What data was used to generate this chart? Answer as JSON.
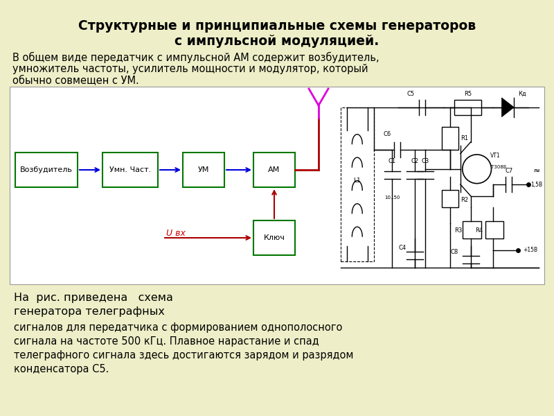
{
  "bg_color": "#eeeec8",
  "title_line1": "Структурные и принципиальные схемы генераторов",
  "title_line2": "с импульсной модуляцией.",
  "title_fontsize": 13.5,
  "para1_line1": "В общем виде передатчик с импульсной АМ содержит возбудитель,",
  "para1_line2": "умножитель частоты, усилитель мощности и модулятор, который",
  "para1_line3": "обычно совмещен с УМ.",
  "para1_fontsize": 10.5,
  "para2_line1": "На  рис. приведена   схема",
  "para2_line2": "генератора телеграфных",
  "para2_fontsize": 11.5,
  "para3_line1": "сигналов для передатчика с формированием однополосного",
  "para3_line2": "сигнала на частоте 500 кГц. Плавное нарастание и спад",
  "para3_line3": "телеграфного сигнала здесь достигаются зарядом и разрядом",
  "para3_line4": "конденсатора С5.",
  "para3_fontsize": 10.5,
  "box_color": "#007700",
  "arrow_blue": "#0000dd",
  "arrow_red": "#aa0000",
  "antenna_color": "#dd00dd",
  "u_color": "#cc0000"
}
